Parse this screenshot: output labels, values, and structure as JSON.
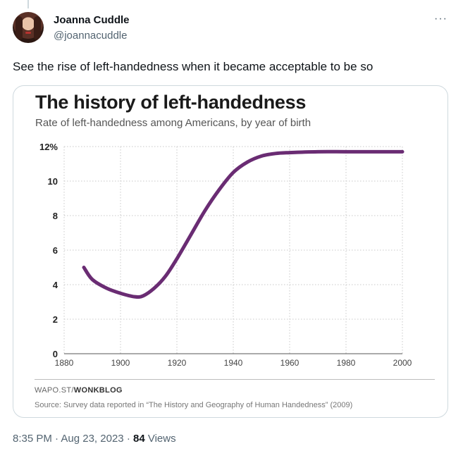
{
  "tweet": {
    "display_name": "Joanna Cuddle",
    "handle": "@joannacuddle",
    "more_label": "···",
    "text": "See the rise of left-handedness when it became acceptable to be so",
    "time": "8:35 PM",
    "date": "Aug 23, 2023",
    "separator": "·",
    "views": "84",
    "views_label": "Views"
  },
  "chart_data": {
    "type": "line",
    "title": "The history of left-handedness",
    "subtitle": "Rate of left-handedness among Americans, by year of birth",
    "xlabel": "",
    "ylabel": "",
    "xlim": [
      1880,
      2000
    ],
    "ylim": [
      0,
      12
    ],
    "x_ticks": [
      "1880",
      "1900",
      "1920",
      "1940",
      "1960",
      "1980",
      "2000"
    ],
    "y_ticks": [
      "0",
      "2",
      "4",
      "6",
      "8",
      "10",
      "12%"
    ],
    "grid": true,
    "line_color": "#6a2c73",
    "series": [
      {
        "x": [
          1887,
          1890,
          1895,
          1900,
          1905,
          1908,
          1912,
          1916,
          1920,
          1925,
          1930,
          1935,
          1940,
          1945,
          1950,
          1955,
          1960,
          1970,
          1980,
          1990,
          2000
        ],
        "values": [
          5.0,
          4.3,
          3.8,
          3.5,
          3.3,
          3.35,
          3.8,
          4.5,
          5.5,
          6.9,
          8.3,
          9.5,
          10.5,
          11.1,
          11.45,
          11.6,
          11.65,
          11.7,
          11.7,
          11.7,
          11.7
        ]
      }
    ],
    "credit_prefix": "WAPO.ST/",
    "credit_bold": "WONKBLOG",
    "source": "Source: Survey data reported in “The History and Geography of Human Handedness” (2009)"
  }
}
